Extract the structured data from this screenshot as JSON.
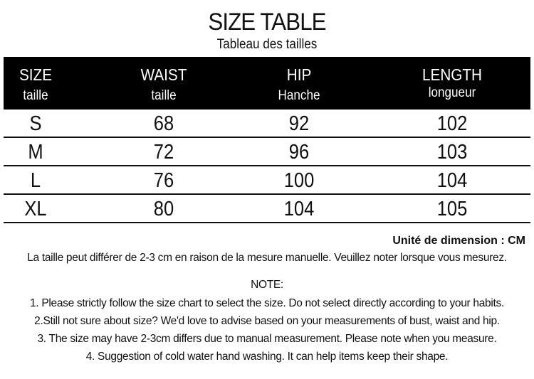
{
  "title": "SIZE TABLE",
  "subtitle": "Tableau des tailles",
  "headers": [
    {
      "label": "SIZE",
      "sub": "taille"
    },
    {
      "label": "WAIST",
      "sub": "taille"
    },
    {
      "label": "HIP",
      "sub": "Hanche"
    },
    {
      "label": "LENGTH",
      "sub": "longueur"
    }
  ],
  "rows": [
    [
      "S",
      "68",
      "92",
      "102"
    ],
    [
      "M",
      "72",
      "96",
      "103"
    ],
    [
      "L",
      "76",
      "100",
      "104"
    ],
    [
      "XL",
      "80",
      "104",
      "105"
    ]
  ],
  "unit": "Unité de dimension : CM",
  "disclaimer": "La taille peut différer de 2-3 cm en raison de la mesure manuelle. Veuillez noter lorsque vous mesurez.",
  "notes": {
    "heading": "NOTE:",
    "items": [
      "1. Please strictly follow the size chart to select the size. Do not select directly according to your habits.",
      "2.Still not sure about size? We'd love to advise based on your measurements of bust, waist and hip.",
      "3. The size may have 2-3cm differs due to manual measurement. Please note when you measure.",
      "4. Suggestion of cold water hand washing. It can help items keep their shape."
    ]
  }
}
